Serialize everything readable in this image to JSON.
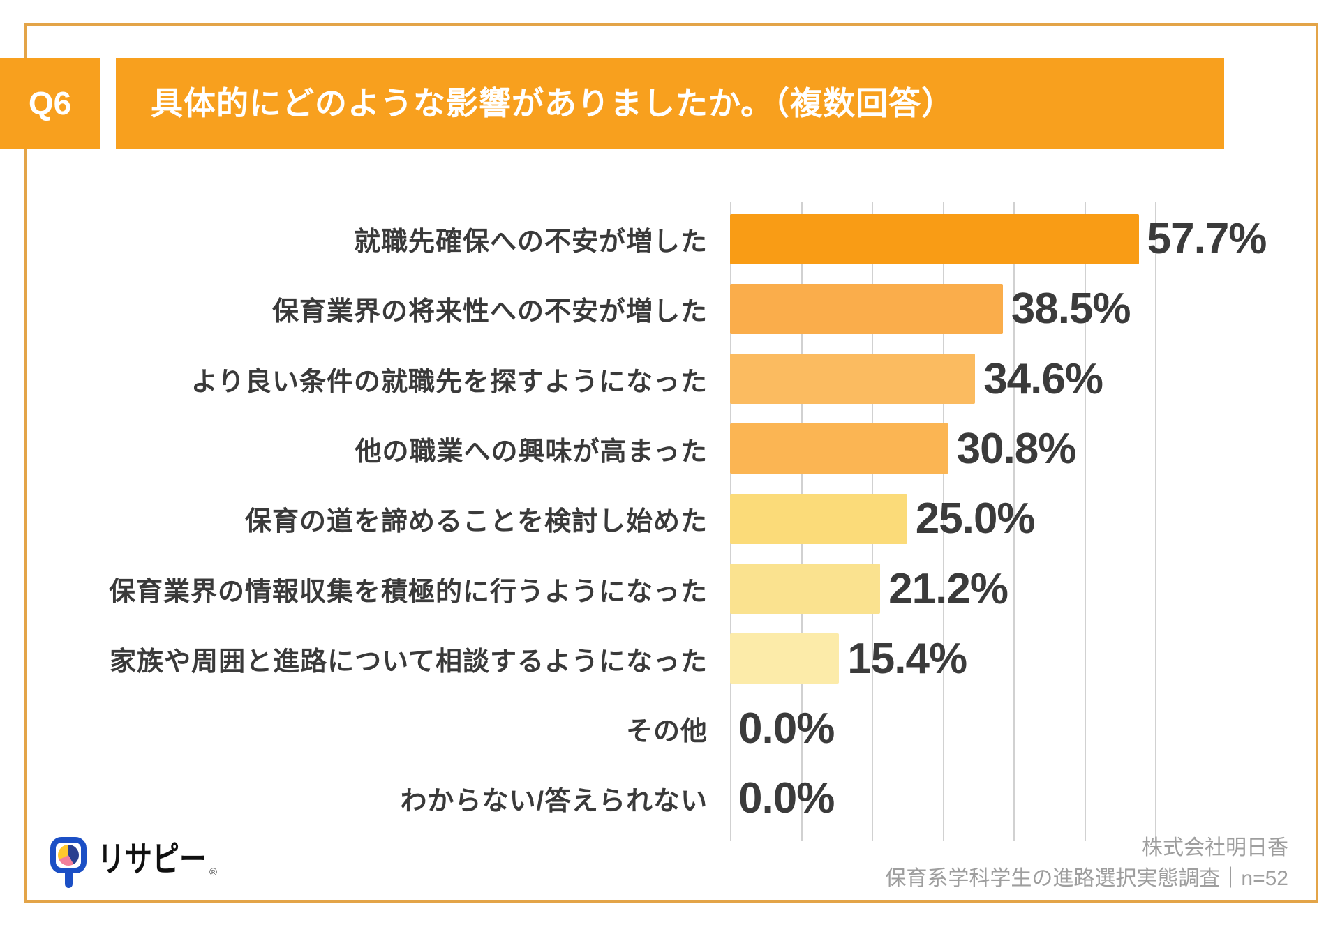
{
  "header": {
    "question_no": "Q6",
    "title": "具体的にどのような影響がありましたか。（複数回答）"
  },
  "chart_data": {
    "type": "bar",
    "orientation": "horizontal",
    "title": "具体的にどのような影響がありましたか。（複数回答）",
    "categories": [
      "就職先確保への不安が増した",
      "保育業界の将来性への不安が増した",
      "より良い条件の就職先を探すようになった",
      "他の職業への興味が高まった",
      "保育の道を諦めることを検討し始めた",
      "保育業界の情報収集を積極的に行うようになった",
      "家族や周囲と進路について相談するようになった",
      "その他",
      "わからない/答えられない"
    ],
    "values": [
      57.7,
      38.5,
      34.6,
      30.8,
      25.0,
      21.2,
      15.4,
      0.0,
      0.0
    ],
    "value_labels": [
      "57.7%",
      "38.5%",
      "34.6%",
      "30.8%",
      "25.0%",
      "21.2%",
      "15.4%",
      "0.0%",
      "0.0%"
    ],
    "bar_colors": [
      "#F99C15",
      "#FAAD4B",
      "#FBBB60",
      "#FBB553",
      "#FBDB79",
      "#FAE28F",
      "#FCEBA9",
      "#FCEBA9",
      "#FCEBA9"
    ],
    "xlim": [
      0,
      60
    ],
    "gridline_interval": 10,
    "grid": true,
    "legend": false
  },
  "footer": {
    "logo_text": "リサピー",
    "registered_mark": "®",
    "credit_line1": "株式会社明日香",
    "credit_line2": "保育系学科学生の進路選択実態調査｜n=52"
  },
  "colors": {
    "accent_orange": "#F8A01E",
    "frame_border": "#E3A448",
    "grid_line": "#ABABAB",
    "value_text": "#3B3B3B",
    "label_text": "#3A3A3A",
    "footer_text": "#9E9E9E",
    "logo_blue": "#1B4FC5",
    "logo_navy": "#2A3F8F",
    "logo_yellow": "#FFC82D",
    "logo_pink": "#F27F9B"
  }
}
